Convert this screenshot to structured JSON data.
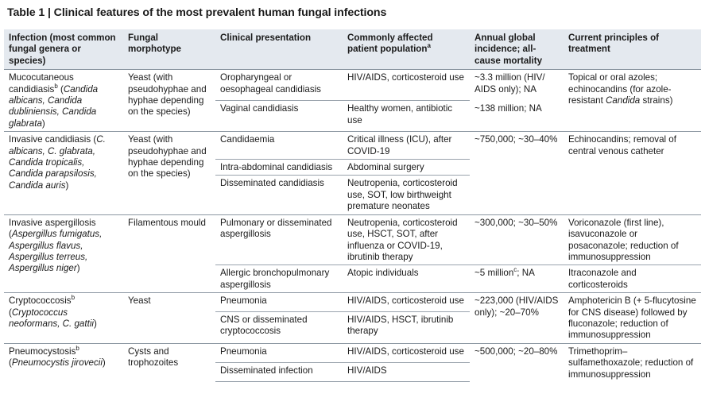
{
  "title": "Table 1 | Clinical features of the most prevalent human fungal infections",
  "headers": {
    "infection": "Infection (most common fungal genera or species)",
    "morphotype": "Fungal morphotype",
    "presentation": "Clinical presentation",
    "population": "Commonly affected patient population",
    "population_sup": "a",
    "incidence": "Annual global incidence; all-cause mortality",
    "treatment": "Current principles of treatment"
  },
  "groups": [
    {
      "infection_name": "Mucocutaneous candidiasis",
      "infection_sup": "b",
      "infection_species_open": " (",
      "infection_species": "Candida albicans, Candida dubliniensis, Candida glabrata",
      "infection_species_close": ")",
      "morphotype": "Yeast (with pseudohyphae and hyphae depending on the species)",
      "rows": [
        {
          "presentation": "Oropharyngeal or oesophageal candidiasis",
          "population": "HIV/AIDS, corticosteroid use",
          "incidence": "~3.3 million (HIV/ AIDS only); NA",
          "treatment_pre": "Topical or oral azoles; echinocandins (for azole-resistant ",
          "treatment_italic": "Candida",
          "treatment_post": " strains)"
        },
        {
          "presentation": "Vaginal candidiasis",
          "population": "Healthy women, antibiotic use",
          "incidence": "~138 million; NA"
        }
      ]
    },
    {
      "infection_name": "Invasive candidiasis",
      "infection_species_open": " (",
      "infection_species": "C. albicans, C. glabrata, Candida tropicalis, Candida parapsilosis, Candida auris",
      "infection_species_close": ")",
      "morphotype": "Yeast (with pseudohyphae and hyphae depending on the species)",
      "incidence": "~750,000; ~30–40%",
      "treatment": "Echinocandins; removal of central venous catheter",
      "rows": [
        {
          "presentation": "Candidaemia",
          "population": "Critical illness (ICU), after COVID-19"
        },
        {
          "presentation": "Intra-abdominal candidiasis",
          "population": "Abdominal surgery"
        },
        {
          "presentation": "Disseminated candidiasis",
          "population": "Neutropenia, corticosteroid use, SOT, low birthweight premature neonates"
        }
      ]
    },
    {
      "infection_name": "Invasive aspergillosis",
      "infection_species_open": " (",
      "infection_species": "Aspergillus fumigatus, Aspergillus flavus, Aspergillus terreus, Aspergillus niger",
      "infection_species_close": ")",
      "morphotype": "Filamentous mould",
      "rows": [
        {
          "presentation": "Pulmonary or disseminated aspergillosis",
          "population": "Neutropenia, corticosteroid use, HSCT, SOT, after influenza or COVID-19, ibrutinib therapy",
          "incidence": "~300,000; ~30–50%",
          "treatment": "Voriconazole (first line), isavuconazole or posaconazole; reduction of immunosuppression"
        },
        {
          "presentation": "Allergic bronchopulmonary aspergillosis",
          "population": "Atopic individuals",
          "incidence_main": "~5 million",
          "incidence_sup": "c",
          "incidence_rest": "; NA",
          "treatment": "Itraconazole and corticosteroids"
        }
      ]
    },
    {
      "infection_name": "Cryptococcosis",
      "infection_sup": "b",
      "infection_species_open": " (",
      "infection_species": "Cryptococcus neoformans, C. gattii",
      "infection_species_close": ")",
      "morphotype": "Yeast",
      "incidence": "~223,000 (HIV/AIDS only); ~20–70%",
      "treatment": "Amphotericin B (+ 5-flucytosine for CNS disease) followed by fluconazole; reduction of immunosuppression",
      "rows": [
        {
          "presentation": "Pneumonia",
          "population": "HIV/AIDS, corticosteroid use"
        },
        {
          "presentation": "CNS or disseminated cryptococcosis",
          "population": "HIV/AIDS, HSCT, ibrutinib therapy"
        }
      ]
    },
    {
      "infection_name": "Pneumocystosis",
      "infection_sup": "b",
      "infection_species_open": " (",
      "infection_species": "Pneumocystis jirovecii",
      "infection_species_close": ")",
      "morphotype": "Cysts and trophozoites",
      "incidence": "~500,000; ~20–80%",
      "treatment": "Trimethoprim–sulfamethoxazole; reduction of immunosuppression",
      "rows": [
        {
          "presentation": "Pneumonia",
          "population": "HIV/AIDS, corticosteroid use"
        },
        {
          "presentation": "Disseminated infection",
          "population": "HIV/AIDS"
        }
      ]
    }
  ]
}
